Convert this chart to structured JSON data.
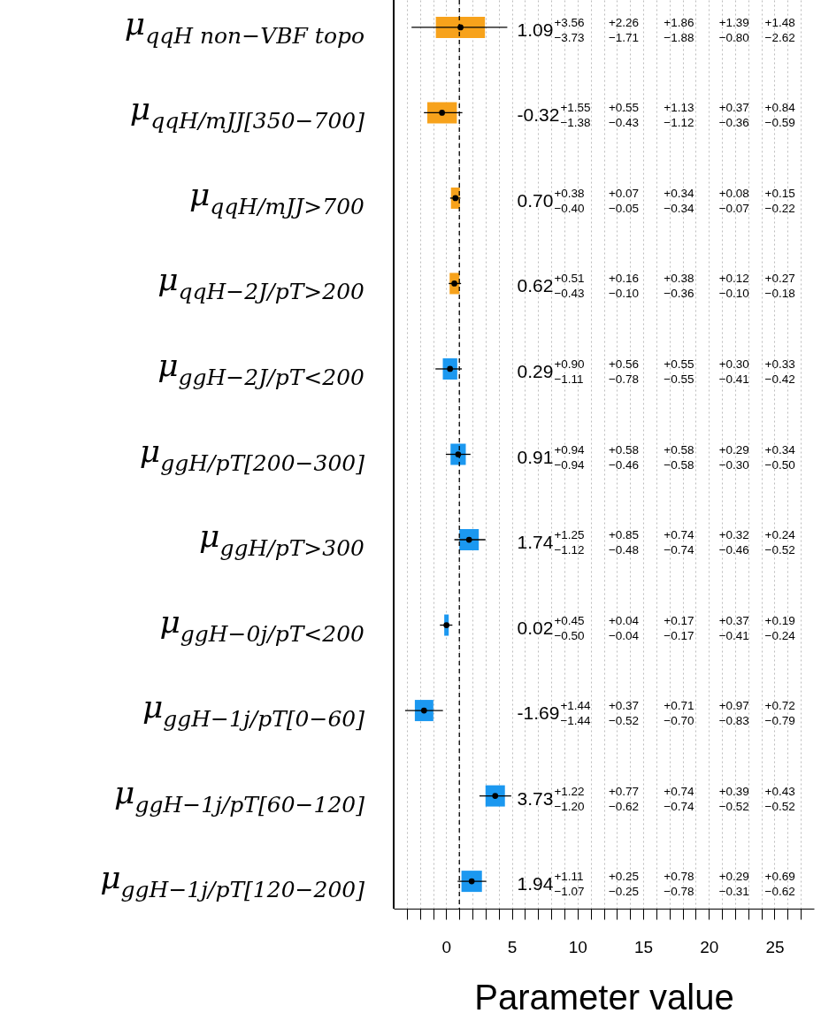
{
  "chart_data": {
    "type": "bar",
    "orientation": "horizontal",
    "xlabel": "Parameter value",
    "categories": [
      "μ$_{qqH non−VBF topo}$",
      "μ$_{qqH/mJJ[350−700]}$",
      "μ$_{qqH/mJJ>700}$",
      "μ$_{qqH−2J/pT>200}$",
      "μ$_{ggH−2J/pT<200}$",
      "μ$_{ggH/pT[200−300]}$",
      "μ$_{ggH/pT>300}$",
      "μ$_{ggH−0j/pT<200}$",
      "μ$_{ggH−1j/pT[0−60]}$",
      "μ$_{ggH−1j/pT[60−120]}$",
      "μ$_{ggH−1j/pT[120−200]}$"
    ],
    "xlim": [
      -4,
      28
    ],
    "xticks": [
      {
        "value": -3,
        "label": null
      },
      {
        "value": -2,
        "label": null
      },
      {
        "value": -1,
        "label": null
      },
      0,
      {
        "value": 1,
        "label": null
      },
      {
        "value": 2,
        "label": null
      },
      {
        "value": 3,
        "label": null
      },
      {
        "value": 4,
        "label": null
      },
      5,
      {
        "value": 6,
        "label": null
      },
      {
        "value": 7,
        "label": null
      },
      {
        "value": 8,
        "label": null
      },
      {
        "value": 9,
        "label": null
      },
      10,
      {
        "value": 11,
        "label": null
      },
      {
        "value": 12,
        "label": null
      },
      {
        "value": 13,
        "label": null
      },
      {
        "value": 14,
        "label": null
      },
      15,
      {
        "value": 16,
        "label": null
      },
      {
        "value": 17,
        "label": null
      },
      {
        "value": 18,
        "label": null
      },
      {
        "value": 19,
        "label": null
      },
      20,
      {
        "value": 21,
        "label": null
      },
      {
        "value": 22,
        "label": null
      },
      {
        "value": 23,
        "label": null
      },
      {
        "value": 24,
        "label": null
      },
      25,
      {
        "value": 26,
        "label": null
      },
      {
        "value": 27,
        "label": null
      }
    ],
    "grid": "x",
    "ref_lines": [
      {
        "axis": "x",
        "value": 1,
        "color": "#000000",
        "line_style": "dashed"
      }
    ],
    "series": [
      {
        "type": "bar",
        "base": [
          -0.79,
          -1.44,
          0.36,
          0.26,
          -0.26,
          0.33,
          1.0,
          -0.15,
          -2.39,
          2.99,
          1.16
        ],
        "values": [
          3.74,
          2.25,
          0.68,
          0.74,
          1.1,
          1.16,
          1.48,
          0.34,
          1.41,
          1.48,
          1.56
        ],
        "colors": [
          "#f7a21b",
          "#f7a21b",
          "#f7a21b",
          "#f7a21b",
          "#1b98f0",
          "#1b98f0",
          "#1b98f0",
          "#1b98f0",
          "#1b98f0",
          "#1b98f0",
          "#1b98f0"
        ]
      },
      {
        "type": "scatter",
        "marker": "circle",
        "color": "#000000",
        "values": [
          1.09,
          -0.32,
          0.7,
          0.62,
          0.29,
          0.91,
          1.74,
          0.02,
          -1.69,
          3.73,
          1.94
        ],
        "errors": [
          [
            -2.64,
            4.65
          ],
          [
            -1.7,
            1.23
          ],
          [
            0.3,
            1.08
          ],
          [
            0.19,
            1.13
          ],
          [
            -0.82,
            1.19
          ],
          [
            -0.03,
            1.85
          ],
          [
            0.62,
            2.99
          ],
          [
            -0.48,
            0.47
          ],
          [
            -3.13,
            -0.25
          ],
          [
            2.53,
            4.95
          ],
          [
            0.87,
            3.05
          ]
        ]
      }
    ],
    "annotations": [
      "1.09$^{+3.56}$$_{−3.73}$",
      "$^{+2.26}$$_{−1.71}$",
      "$^{+1.86}$$_{−1.88}$",
      "$^{+1.39}$$_{−0.80}$",
      "$^{+1.48}$$_{−2.62}$",
      "-0.32$^{+1.55}$$_{−1.38}$",
      "$^{+0.55}$$_{−0.43}$",
      "$^{+1.13}$$_{−1.12}$",
      "$^{+0.37}$$_{−0.36}$",
      "$^{+0.84}$$_{−0.59}$",
      "0.70$^{+0.38}$$_{−0.40}$",
      "$^{+0.07}$$_{−0.05}$",
      "$^{+0.34}$$_{−0.34}$",
      "$^{+0.08}$$_{−0.07}$",
      "$^{+0.15}$$_{−0.22}$",
      "0.62$^{+0.51}$$_{−0.43}$",
      "$^{+0.16}$$_{−0.10}$",
      "$^{+0.38}$$_{−0.36}$",
      "$^{+0.12}$$_{−0.10}$",
      "$^{+0.27}$$_{−0.18}$",
      "0.29$^{+0.90}$$_{−1.11}$",
      "$^{+0.56}$$_{−0.78}$",
      "$^{+0.55}$$_{−0.55}$",
      "$^{+0.30}$$_{−0.41}$",
      "$^{+0.33}$$_{−0.42}$",
      "0.91$^{+0.94}$$_{−0.94}$",
      "$^{+0.58}$$_{−0.46}$",
      "$^{+0.58}$$_{−0.58}$",
      "$^{+0.29}$$_{−0.30}$",
      "$^{+0.34}$$_{−0.50}$",
      "1.74$^{+1.25}$$_{−1.12}$",
      "$^{+0.85}$$_{−0.48}$",
      "$^{+0.74}$$_{−0.74}$",
      "$^{+0.32}$$_{−0.46}$",
      "$^{+0.24}$$_{−0.52}$",
      "0.02$^{+0.45}$$_{−0.50}$",
      "$^{+0.04}$$_{−0.04}$",
      "$^{+0.17}$$_{−0.17}$",
      "$^{+0.37}$$_{−0.41}$",
      "$^{+0.19}$$_{−0.24}$",
      "-1.69$^{+1.44}$$_{−1.44}$",
      "$^{+0.37}$$_{−0.52}$",
      "$^{+0.71}$$_{−0.70}$",
      "$^{+0.97}$$_{−0.83}$",
      "$^{+0.72}$$_{−0.79}$",
      "3.73$^{+1.22}$$_{−1.20}$",
      "$^{+0.77}$$_{−0.62}$",
      "$^{+0.74}$$_{−0.74}$",
      "$^{+0.39}$$_{−0.52}$",
      "$^{+0.43}$$_{−0.52}$",
      "1.94$^{+1.11}$$_{−1.07}$",
      "$^{+0.25}$$_{−0.25}$",
      "$^{+0.78}$$_{−0.78}$",
      "$^{+0.29}$$_{−0.31}$",
      "$^{+0.69}$$_{−0.62}$"
    ]
  }
}
